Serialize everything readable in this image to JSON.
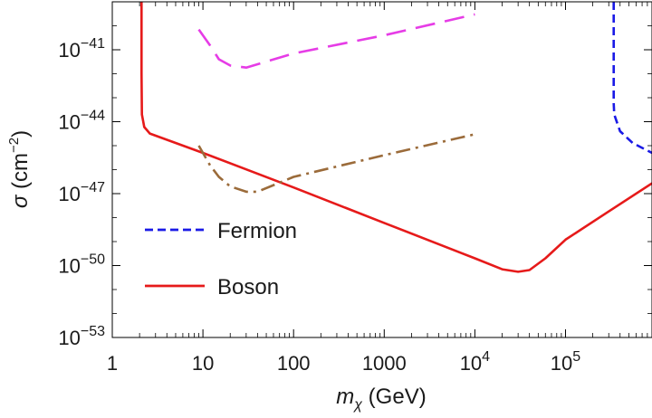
{
  "chart_data": {
    "type": "line",
    "title": "",
    "xscale": "log",
    "yscale": "log",
    "xlim": [
      1,
      900000
    ],
    "ylim": [
      1e-53,
      1e-39
    ],
    "grid": false,
    "legend_placement": "bottom-left",
    "xlabel": {
      "symbol": "m",
      "subscript": "χ",
      "unit": " (GeV)"
    },
    "ylabel": {
      "symbol": "σ",
      "unit_text": " (cm",
      "unit_exp": "−2",
      "unit_close": ")"
    },
    "x_ticks": [
      {
        "value": 1,
        "label": "1"
      },
      {
        "value": 10,
        "label": "10"
      },
      {
        "value": 100,
        "label": "100"
      },
      {
        "value": 1000,
        "label": "1000"
      },
      {
        "value": 10000,
        "base": "10",
        "exp": "4"
      },
      {
        "value": 100000,
        "base": "10",
        "exp": "5"
      }
    ],
    "y_ticks": [
      {
        "value": 1e-41,
        "base": "10",
        "exp": "−41"
      },
      {
        "value": 1e-44,
        "base": "10",
        "exp": "−44"
      },
      {
        "value": 1e-47,
        "base": "10",
        "exp": "−47"
      },
      {
        "value": 1e-50,
        "base": "10",
        "exp": "−50"
      },
      {
        "value": 1e-53,
        "base": "10",
        "exp": "−53"
      }
    ],
    "series": [
      {
        "name": "Fermion",
        "color": "#1a1ae6",
        "dash": "dashed",
        "points": [
          [
            340000,
            1e-39
          ],
          [
            340000,
            1e-42
          ],
          [
            340000,
            6e-44
          ],
          [
            345000,
            2e-44
          ],
          [
            400000,
            4e-45
          ],
          [
            550000,
            1.3e-45
          ],
          [
            900000,
            5e-46
          ]
        ]
      },
      {
        "name": "Boson",
        "color": "#e61a1a",
        "dash": "solid",
        "points": [
          [
            2.1,
            1e-39
          ],
          [
            2.1,
            1e-42
          ],
          [
            2.12,
            2e-44
          ],
          [
            2.25,
            6e-45
          ],
          [
            2.6,
            3.2e-45
          ],
          [
            10,
            5e-46
          ],
          [
            100,
            1.8e-47
          ],
          [
            1000,
            6e-49
          ],
          [
            10000,
            2e-50
          ],
          [
            20000,
            7e-51
          ],
          [
            30000,
            5.5e-51
          ],
          [
            40000,
            6.5e-51
          ],
          [
            60000,
            2e-50
          ],
          [
            100000,
            1.2e-49
          ],
          [
            300000,
            1.8e-48
          ],
          [
            900000,
            2.7e-47
          ]
        ]
      },
      {
        "name": "",
        "color": "#e63ce6",
        "dash": "long-dash",
        "points": [
          [
            9,
            7e-41
          ],
          [
            12,
            1.5e-41
          ],
          [
            15,
            4e-42
          ],
          [
            20,
            2.2e-42
          ],
          [
            30,
            1.8e-42
          ],
          [
            100,
            7e-42
          ],
          [
            1000,
            4e-41
          ],
          [
            10000,
            3e-40
          ]
        ]
      },
      {
        "name": "",
        "color": "#9b6b3a",
        "dash": "dash-dot",
        "points": [
          [
            9,
            1e-45
          ],
          [
            12,
            1.5e-46
          ],
          [
            15,
            5e-47
          ],
          [
            20,
            2e-47
          ],
          [
            30,
            1.2e-47
          ],
          [
            40,
            1.2e-47
          ],
          [
            100,
            5e-47
          ],
          [
            1000,
            4e-46
          ],
          [
            10000,
            3e-45
          ]
        ]
      }
    ],
    "legend": [
      {
        "label": "Fermion",
        "color": "#1a1ae6",
        "dash": "dashed"
      },
      {
        "label": "Boson",
        "color": "#e61a1a",
        "dash": "solid"
      }
    ]
  }
}
